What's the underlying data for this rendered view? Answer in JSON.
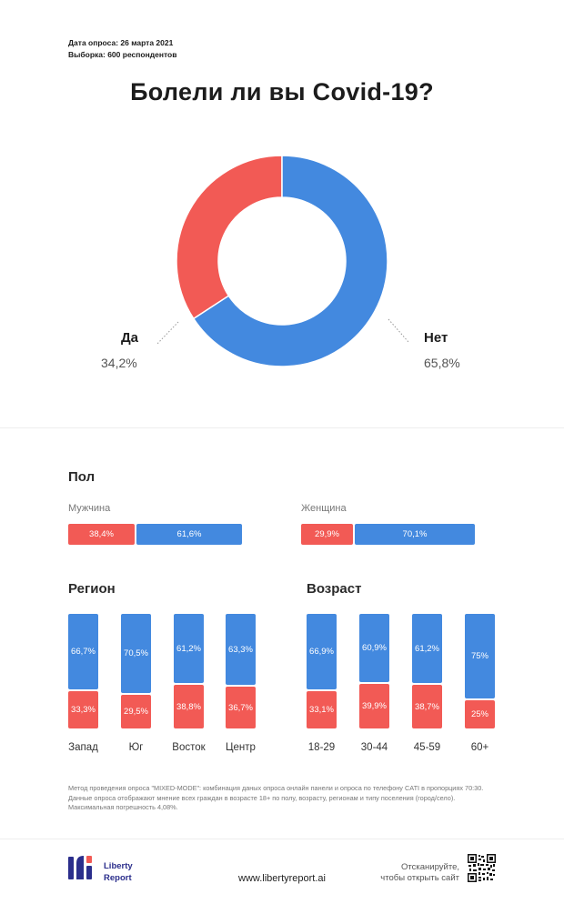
{
  "header": {
    "date_line": "Дата опроса: 26 марта 2021",
    "sample_line": "Выборка: 600 респондентов"
  },
  "title": "Болели ли вы Covid-19?",
  "colors": {
    "yes": "#f25a55",
    "no": "#4389df"
  },
  "chart_data": [
    {
      "type": "pie",
      "title": "Болели ли вы Covid-19?",
      "labels": [
        "Да",
        "Нет"
      ],
      "values": [
        34.2,
        65.8
      ],
      "value_labels": [
        "34,2%",
        "65,8%"
      ],
      "donut": true
    },
    {
      "type": "bar",
      "orientation": "horizontal",
      "stacked": true,
      "title": "Пол",
      "categories": [
        "Мужчина",
        "Женщина"
      ],
      "series": [
        {
          "name": "Да",
          "values": [
            38.4,
            29.9
          ],
          "labels": [
            "38,4%",
            "29,9%"
          ]
        },
        {
          "name": "Нет",
          "values": [
            61.6,
            70.1
          ],
          "labels": [
            "61,6%",
            "70,1%"
          ]
        }
      ]
    },
    {
      "type": "bar",
      "stacked": true,
      "title": "Регион",
      "categories": [
        "Запад",
        "Юг",
        "Восток",
        "Центр"
      ],
      "series": [
        {
          "name": "Нет",
          "values": [
            66.7,
            70.5,
            61.2,
            63.3
          ],
          "labels": [
            "66,7%",
            "70,5%",
            "61,2%",
            "63,3%"
          ]
        },
        {
          "name": "Да",
          "values": [
            33.3,
            29.5,
            38.8,
            36.7
          ],
          "labels": [
            "33,3%",
            "29,5%",
            "38,8%",
            "36,7%"
          ]
        }
      ]
    },
    {
      "type": "bar",
      "stacked": true,
      "title": "Возраст",
      "categories": [
        "18-29",
        "30-44",
        "45-59",
        "60+"
      ],
      "series": [
        {
          "name": "Нет",
          "values": [
            66.9,
            60.9,
            61.2,
            75
          ],
          "labels": [
            "66,9%",
            "60,9%",
            "61,2%",
            "75%"
          ]
        },
        {
          "name": "Да",
          "values": [
            33.1,
            39.9,
            38.7,
            25
          ],
          "labels": [
            "33,1%",
            "39,9%",
            "38,7%",
            "25%"
          ]
        }
      ]
    }
  ],
  "method_text": "Метод проведения опроса \"MIXED-MODE\": комбинация даных опроса онлайн панели и опроса по телефону CATI в пропорциях 70:30. Данные опроса отображают мнение всех граждан в возрасте 18+ по полу, возрасту, регионам и типу поселения (город/село). Максимальная погрешность 4,08%.",
  "footer": {
    "logo_line1": "Liberty",
    "logo_line2": "Report",
    "url": "www.libertyreport.ai",
    "scan_line1": "Отсканируйте,",
    "scan_line2": "чтобы открыть сайт",
    "qr_icon": "qr-code-icon"
  }
}
